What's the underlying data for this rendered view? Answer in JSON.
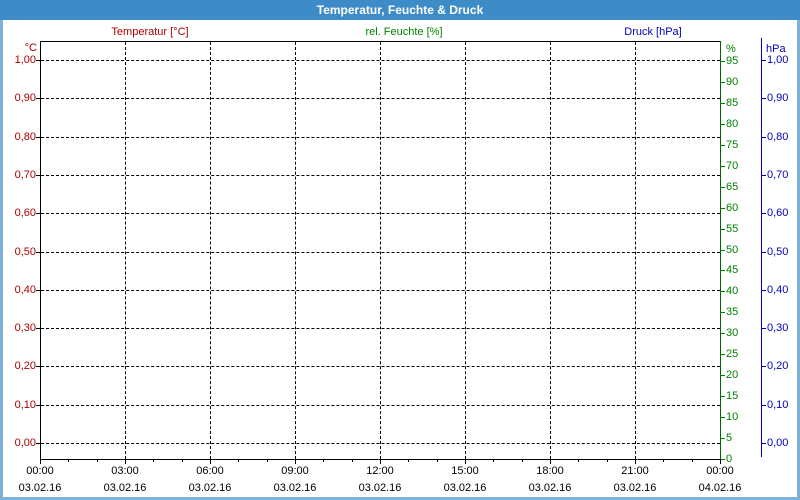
{
  "window": {
    "title_bar": "Temperatur, Feuchte & Druck"
  },
  "colors": {
    "title_bar_bg": "#3e8cc7",
    "title_text": "#ffffff",
    "frame_border": "#7fb2d9",
    "temperature": "#aa0000",
    "humidity": "#008000",
    "humidity_axis_line": "#006400",
    "pressure": "#0000c0",
    "grid": "#000000",
    "plot_frame": "#000000"
  },
  "chart_data": {
    "type": "line",
    "title": "Temperatur, Feuchte & Druck",
    "grid": true,
    "plot_empty_note": "no data curves drawn - empty dashed grid only",
    "series": [
      {
        "name": "Temperatur [°C]",
        "axis": "left",
        "color": "#aa0000",
        "values": []
      },
      {
        "name": "rel. Feuchte [%]",
        "axis": "right-inner",
        "color": "#008000",
        "values": []
      },
      {
        "name": "Druck [hPa]",
        "axis": "right-outer",
        "color": "#0000c0",
        "values": []
      }
    ],
    "temperature_axis": {
      "unit": "°C",
      "tick_labels": [
        "1,00",
        "0,90",
        "0,80",
        "0,70",
        "0,60",
        "0,50",
        "0,40",
        "0,30",
        "0,20",
        "0,10",
        "0,00"
      ],
      "range": [
        0.0,
        1.0
      ]
    },
    "humidity_axis": {
      "unit": "%",
      "tick_labels": [
        "95",
        "90",
        "85",
        "80",
        "75",
        "70",
        "65",
        "60",
        "55",
        "50",
        "45",
        "40",
        "35",
        "30",
        "25",
        "20",
        "15",
        "10",
        "5",
        "0"
      ],
      "range": [
        0,
        95
      ]
    },
    "pressure_axis": {
      "unit": "hPa",
      "tick_labels": [
        "1,00",
        "0,90",
        "0,80",
        "0,70",
        "0,60",
        "0,50",
        "0,40",
        "0,30",
        "0,20",
        "0,10",
        "0,00"
      ],
      "range": [
        0.0,
        1.0
      ]
    },
    "x_axis": {
      "interval_hours": 3,
      "minor_tick_every_hours": 1,
      "major_ticks": [
        {
          "time": "00:00",
          "date": "03.02.16"
        },
        {
          "time": "03:00",
          "date": "03.02.16"
        },
        {
          "time": "06:00",
          "date": "03.02.16"
        },
        {
          "time": "09:00",
          "date": "03.02.16"
        },
        {
          "time": "12:00",
          "date": "03.02.16"
        },
        {
          "time": "15:00",
          "date": "03.02.16"
        },
        {
          "time": "18:00",
          "date": "03.02.16"
        },
        {
          "time": "21:00",
          "date": "03.02.16"
        },
        {
          "time": "00:00",
          "date": "04.02.16"
        }
      ]
    }
  }
}
